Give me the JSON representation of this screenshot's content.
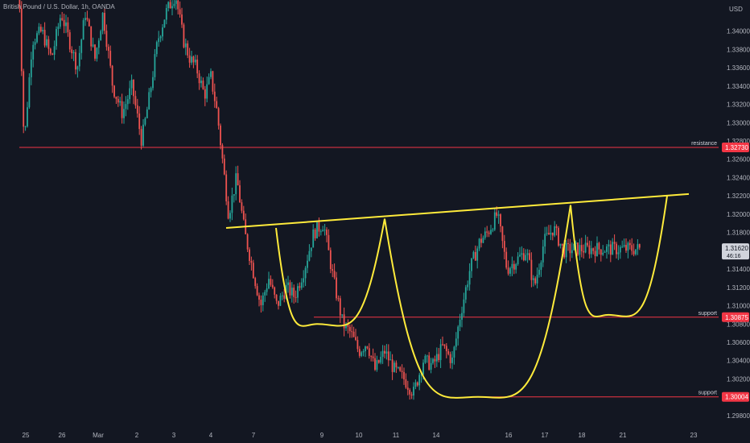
{
  "header": {
    "title": "British Pound / U.S. Dollar, 1h, OANDA"
  },
  "price_axis": {
    "currency": "USD",
    "ticks": [
      "1.34000",
      "1.33800",
      "1.33600",
      "1.33400",
      "1.33200",
      "1.33000",
      "1.32800",
      "1.32600",
      "1.32400",
      "1.32200",
      "1.32000",
      "1.31800",
      "1.31400",
      "1.31200",
      "1.31000",
      "1.30800",
      "1.30600",
      "1.30400",
      "1.30200",
      "1.29800"
    ],
    "last_price": "1.31620",
    "countdown": "46:16"
  },
  "time_axis": {
    "labels": [
      "25",
      "26",
      "Mar",
      "2",
      "3",
      "4",
      "7",
      "9",
      "10",
      "11",
      "14",
      "16",
      "17",
      "18",
      "21",
      "23"
    ]
  },
  "levels": [
    {
      "name": "resistance",
      "label": "resistance",
      "price": 1.3273,
      "price_text": "1.32730",
      "color": "#f23645"
    },
    {
      "name": "support",
      "label": "support",
      "price": 1.30875,
      "price_text": "1.30875",
      "color": "#f23645"
    },
    {
      "name": "support",
      "label": "support",
      "price": 1.30004,
      "price_text": "1.30004",
      "color": "#f23645"
    }
  ],
  "colors": {
    "background": "#131722",
    "grid": "#1e222d",
    "up": "#26a69a",
    "down": "#ef5350",
    "drawing": "#ffeb3b",
    "level": "#f23645",
    "axis_text": "#b2b5be"
  },
  "chart_data": {
    "type": "candlestick",
    "title": "British Pound / U.S. Dollar, 1h, OANDA",
    "symbol": "GBPUSD",
    "timeframe": "1h",
    "ylim": [
      1.2972,
      1.3434
    ],
    "grid": false,
    "x_start_date": "2022-02-24",
    "anchors": [
      [
        "2022-02-24",
        1.344
      ],
      [
        "2022-02-24",
        1.3275
      ],
      [
        "2022-02-24",
        1.339
      ],
      [
        "2022-02-25",
        1.34
      ],
      [
        "2022-02-25",
        1.337
      ],
      [
        "2022-02-25",
        1.342
      ],
      [
        "2022-02-26",
        1.339
      ],
      [
        "2022-02-26",
        1.336
      ],
      [
        "2022-02-28",
        1.342
      ],
      [
        "2022-02-28",
        1.337
      ],
      [
        "2022-02-28",
        1.342
      ],
      [
        "2022-03-01",
        1.334
      ],
      [
        "2022-03-01",
        1.331
      ],
      [
        "2022-03-01",
        1.334
      ],
      [
        "2022-03-02",
        1.328
      ],
      [
        "2022-03-02",
        1.333
      ],
      [
        "2022-03-02",
        1.339
      ],
      [
        "2022-03-03",
        1.342
      ],
      [
        "2022-03-03",
        1.344
      ],
      [
        "2022-03-04",
        1.339
      ],
      [
        "2022-03-04",
        1.337
      ],
      [
        "2022-03-04",
        1.336
      ],
      [
        "2022-03-05",
        1.333
      ],
      [
        "2022-03-05",
        1.335
      ],
      [
        "2022-03-05",
        1.331
      ],
      [
        "2022-03-07",
        1.32
      ],
      [
        "2022-03-07",
        1.324
      ],
      [
        "2022-03-07",
        1.318
      ],
      [
        "2022-03-08",
        1.314
      ],
      [
        "2022-03-08",
        1.31
      ],
      [
        "2022-03-08",
        1.313
      ],
      [
        "2022-03-09",
        1.31
      ],
      [
        "2022-03-09",
        1.312
      ],
      [
        "2022-03-09",
        1.311
      ],
      [
        "2022-03-10",
        1.314
      ],
      [
        "2022-03-10",
        1.318
      ],
      [
        "2022-03-10",
        1.319
      ],
      [
        "2022-03-11",
        1.313
      ],
      [
        "2022-03-11",
        1.308
      ],
      [
        "2022-03-11",
        1.307
      ],
      [
        "2022-03-12",
        1.305
      ],
      [
        "2022-03-12",
        1.306
      ],
      [
        "2022-03-14",
        1.303
      ],
      [
        "2022-03-14",
        1.305
      ],
      [
        "2022-03-14",
        1.303
      ],
      [
        "2022-03-15",
        1.302
      ],
      [
        "2022-03-15",
        1.3005
      ],
      [
        "2022-03-15",
        1.304
      ],
      [
        "2022-03-16",
        1.3035
      ],
      [
        "2022-03-16",
        1.3055
      ],
      [
        "2022-03-16",
        1.304
      ],
      [
        "2022-03-17",
        1.309
      ],
      [
        "2022-03-17",
        1.314
      ],
      [
        "2022-03-17",
        1.317
      ],
      [
        "2022-03-18",
        1.318
      ],
      [
        "2022-03-18",
        1.32
      ],
      [
        "2022-03-18",
        1.314
      ],
      [
        "2022-03-19",
        1.315
      ],
      [
        "2022-03-19",
        1.316
      ],
      [
        "2022-03-19",
        1.312
      ],
      [
        "2022-03-20",
        1.317
      ],
      [
        "2022-03-20",
        1.3185
      ],
      [
        "2022-03-21",
        1.316
      ],
      [
        "2022-03-21",
        1.3162
      ]
    ],
    "levels": [
      1.3273,
      1.30875,
      1.30004
    ]
  }
}
